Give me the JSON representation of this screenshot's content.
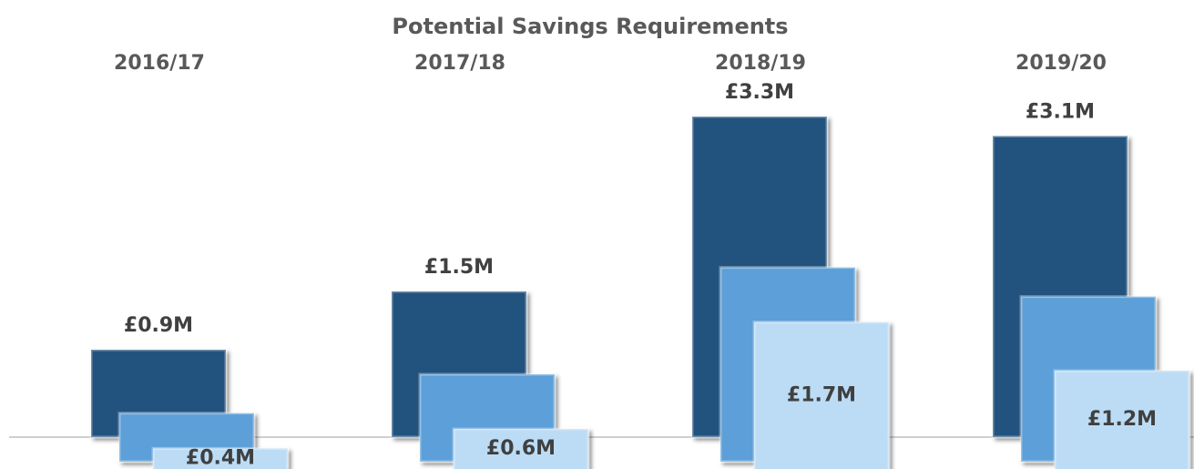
{
  "chart_data": {
    "type": "bar",
    "title": "Potential Savings Requirements",
    "categories": [
      "2016/17",
      "2017/18",
      "2018/19",
      "2019/20"
    ],
    "series": [
      {
        "color": "#24527f",
        "values": [
          0.9,
          1.5,
          3.3,
          3.1
        ],
        "value_labels": [
          "£0.9M",
          "£1.5M",
          "£3.3M",
          "£3.1M"
        ]
      },
      {
        "color": "#5b9fd9",
        "values": [
          0.5,
          0.9,
          2.0,
          1.7
        ]
      },
      {
        "color": "#bcdcf5",
        "values": [
          0.4,
          0.6,
          1.7,
          1.2
        ],
        "value_labels": [
          "£0.4M",
          "£0.6M",
          "£1.7M",
          "£1.2M"
        ]
      }
    ]
  }
}
